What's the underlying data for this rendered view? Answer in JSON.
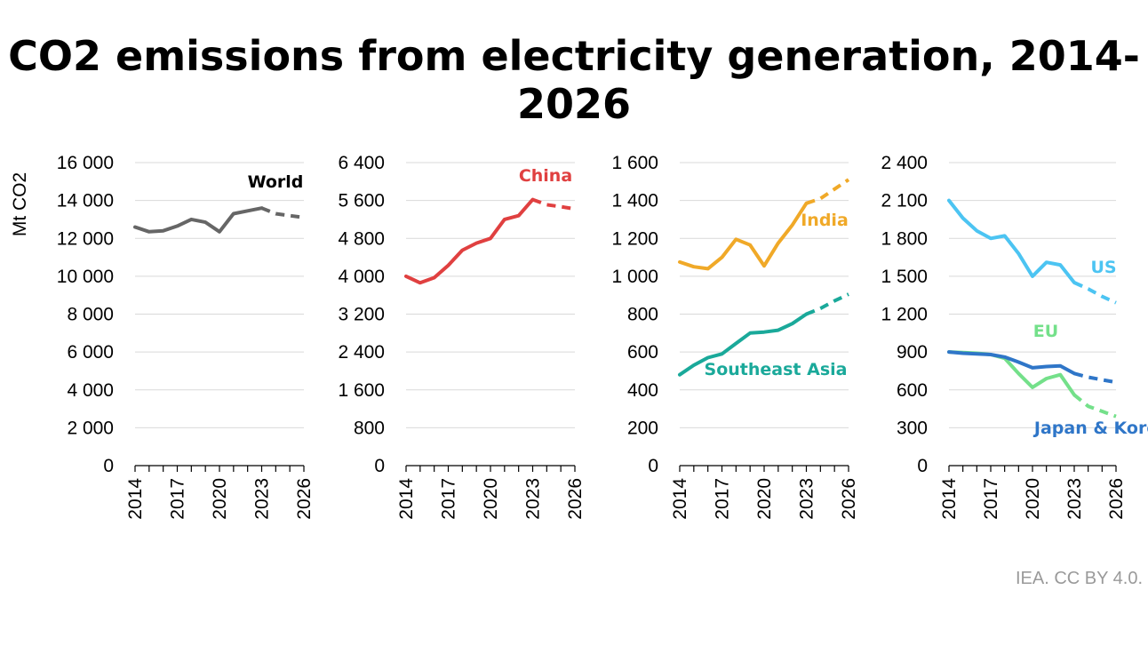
{
  "title": "CO2 emissions from electricity generation, 2014-2026",
  "credit": "IEA. CC BY 4.0.",
  "chart_data": [
    {
      "type": "line",
      "ylabel": "Mt CO2",
      "ylim": [
        0,
        16000
      ],
      "yticks": [
        "0",
        "2 000",
        "4 000",
        "6 000",
        "8 000",
        "10 000",
        "12 000",
        "14 000",
        "16 000"
      ],
      "xlim": [
        2014,
        2026
      ],
      "xticks": [
        "2014",
        "2017",
        "2020",
        "2023",
        "2026"
      ],
      "grid": true,
      "series": [
        {
          "name": "World",
          "color": "#666666",
          "x": [
            2014,
            2015,
            2016,
            2017,
            2018,
            2019,
            2020,
            2021,
            2022,
            2023
          ],
          "values": [
            12600,
            12350,
            12400,
            12650,
            13000,
            12850,
            12350,
            13300,
            13450,
            13600
          ],
          "projection_x": [
            2023,
            2024,
            2025,
            2026
          ],
          "projection_values": [
            13600,
            13300,
            13200,
            13100
          ]
        }
      ]
    },
    {
      "type": "line",
      "ylabel": "",
      "ylim": [
        0,
        6400
      ],
      "yticks": [
        "0",
        "800",
        "1 600",
        "2 400",
        "3 200",
        "4 000",
        "4 800",
        "5 600",
        "6 400"
      ],
      "xlim": [
        2014,
        2026
      ],
      "xticks": [
        "2014",
        "2017",
        "2020",
        "2023",
        "2026"
      ],
      "grid": true,
      "series": [
        {
          "name": "China",
          "color": "#e04040",
          "x": [
            2014,
            2015,
            2016,
            2017,
            2018,
            2019,
            2020,
            2021,
            2022,
            2023
          ],
          "values": [
            4000,
            3860,
            3970,
            4230,
            4550,
            4700,
            4800,
            5200,
            5280,
            5620
          ],
          "projection_x": [
            2023,
            2024,
            2025,
            2026
          ],
          "projection_values": [
            5620,
            5510,
            5470,
            5420
          ]
        }
      ]
    },
    {
      "type": "line",
      "ylabel": "",
      "ylim": [
        0,
        1600
      ],
      "yticks": [
        "0",
        "200",
        "400",
        "600",
        "800",
        "1 000",
        "1 200",
        "1 400",
        "1 600"
      ],
      "xlim": [
        2014,
        2026
      ],
      "xticks": [
        "2014",
        "2017",
        "2020",
        "2023",
        "2026"
      ],
      "grid": true,
      "series": [
        {
          "name": "India",
          "color": "#f0a928",
          "x": [
            2014,
            2015,
            2016,
            2017,
            2018,
            2019,
            2020,
            2021,
            2022,
            2023
          ],
          "values": [
            1075,
            1050,
            1040,
            1100,
            1195,
            1165,
            1055,
            1175,
            1270,
            1385
          ],
          "projection_x": [
            2023,
            2024,
            2025,
            2026
          ],
          "projection_values": [
            1385,
            1410,
            1460,
            1510
          ]
        },
        {
          "name": "Southeast Asia",
          "color": "#1aa99a",
          "x": [
            2014,
            2015,
            2016,
            2017,
            2018,
            2019,
            2020,
            2021,
            2022,
            2023
          ],
          "values": [
            480,
            530,
            570,
            590,
            645,
            700,
            705,
            715,
            750,
            800
          ],
          "projection_x": [
            2023,
            2024,
            2025,
            2026
          ],
          "projection_values": [
            800,
            830,
            870,
            905
          ]
        }
      ]
    },
    {
      "type": "line",
      "ylabel": "",
      "ylim": [
        0,
        2400
      ],
      "yticks": [
        "0",
        "300",
        "600",
        "900",
        "1 200",
        "1 500",
        "1 800",
        "2 100",
        "2 400"
      ],
      "xlim": [
        2014,
        2026
      ],
      "xticks": [
        "2014",
        "2017",
        "2020",
        "2023",
        "2026"
      ],
      "grid": true,
      "series": [
        {
          "name": "US",
          "color": "#4cc4f2",
          "x": [
            2014,
            2015,
            2016,
            2017,
            2018,
            2019,
            2020,
            2021,
            2022,
            2023
          ],
          "values": [
            2100,
            1960,
            1860,
            1800,
            1820,
            1680,
            1500,
            1610,
            1590,
            1450
          ],
          "projection_x": [
            2023,
            2024,
            2025,
            2026
          ],
          "projection_values": [
            1450,
            1400,
            1340,
            1290
          ]
        },
        {
          "name": "EU",
          "color": "#74e08a",
          "x": [
            2014,
            2015,
            2016,
            2017,
            2018,
            2019,
            2020,
            2021,
            2022,
            2023
          ],
          "values": [
            900,
            895,
            890,
            880,
            850,
            730,
            620,
            690,
            720,
            560
          ],
          "projection_x": [
            2023,
            2024,
            2025,
            2026
          ],
          "projection_values": [
            560,
            470,
            430,
            390
          ]
        },
        {
          "name": "Japan & Korea",
          "color": "#2f76c8",
          "x": [
            2014,
            2015,
            2016,
            2017,
            2018,
            2019,
            2020,
            2021,
            2022,
            2023
          ],
          "values": [
            900,
            890,
            885,
            880,
            860,
            820,
            775,
            785,
            790,
            730
          ],
          "projection_x": [
            2023,
            2024,
            2025,
            2026
          ],
          "projection_values": [
            730,
            700,
            680,
            660
          ]
        }
      ]
    }
  ]
}
